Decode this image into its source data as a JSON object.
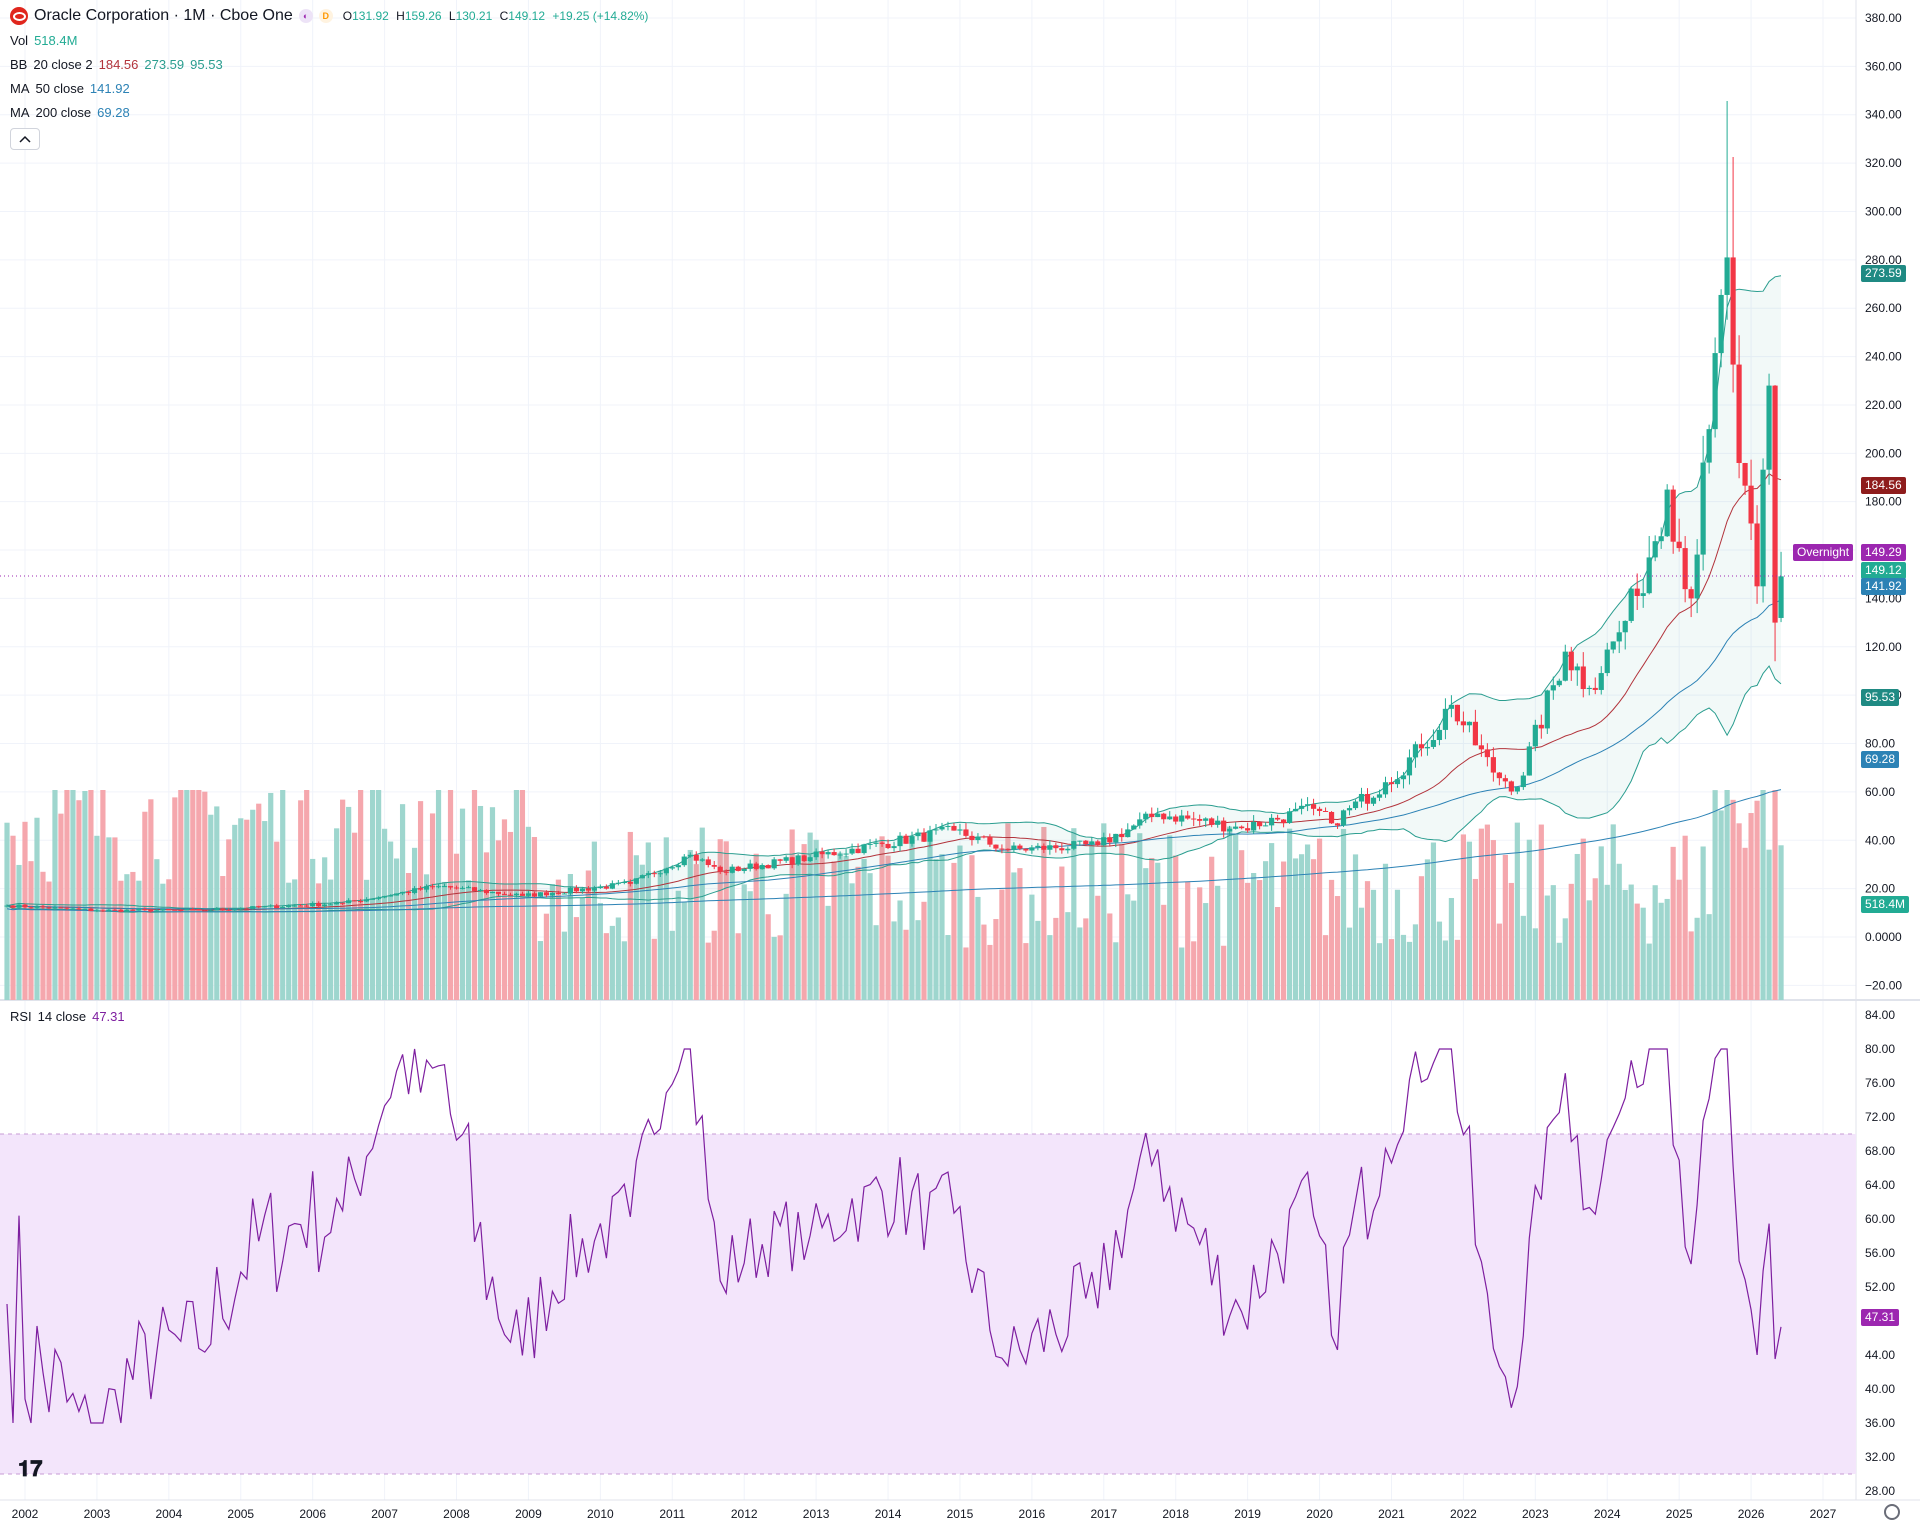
{
  "header": {
    "title": "Oracle Corporation · 1M · Cboe One",
    "logo_icon": "oracle-logo-icon",
    "badges": [
      {
        "icon": "moon-icon",
        "label": "◐",
        "color": "#9c27b0"
      },
      {
        "icon": "dividend-icon",
        "label": "D",
        "color": "#ff9800"
      }
    ],
    "ohlc": {
      "o_label": "O",
      "o": "131.92",
      "h_label": "H",
      "h": "159.26",
      "l_label": "L",
      "l": "130.21",
      "c_label": "C",
      "c": "149.12",
      "change": "+19.25 (+14.82%)"
    }
  },
  "indicators": {
    "vol": {
      "label": "Vol",
      "value": "518.4M"
    },
    "bb": {
      "label": "BB",
      "params": "20 close 2",
      "basis": "184.56",
      "upper": "273.59",
      "lower": "95.53"
    },
    "ma50": {
      "label": "MA",
      "params": "50 close",
      "value": "141.92"
    },
    "ma200": {
      "label": "MA",
      "params": "200 close",
      "value": "69.28"
    },
    "rsi": {
      "label": "RSI",
      "params": "14 close",
      "value": "47.31"
    }
  },
  "price_tags": {
    "bb_upper": "273.59",
    "bb_basis": "184.56",
    "overnight_label": "Overnight",
    "overnight": "149.29",
    "close": "149.12",
    "ma50": "141.92",
    "bb_lower": "95.53",
    "ma200": "69.28",
    "volume": "518.4M",
    "rsi": "47.31"
  },
  "colors": {
    "up": "#22ab94",
    "down": "#f23645",
    "vol_up": "#9ed6ce",
    "vol_down": "#f5a7ad",
    "bb": "#2a9d8f",
    "bb_basis": "#b2333b",
    "ma50": "#2c82b5",
    "ma200": "#2c82b5",
    "rsi": "#7e1fa0",
    "rsi_band": "#f3e5fb",
    "overnight": "#9c27b0"
  },
  "price_axis": [
    "380.00",
    "360.00",
    "340.00",
    "320.00",
    "300.00",
    "280.00",
    "260.00",
    "240.00",
    "220.00",
    "200.00",
    "180.00",
    "160.00",
    "140.00",
    "120.00",
    "100.00",
    "80.00",
    "60.00",
    "40.00",
    "20.00",
    "0.0000",
    "−20.00"
  ],
  "rsi_axis": [
    "84.00",
    "80.00",
    "76.00",
    "72.00",
    "68.00",
    "64.00",
    "60.00",
    "56.00",
    "52.00",
    "48.00",
    "44.00",
    "40.00",
    "36.00",
    "32.00",
    "28.00"
  ],
  "time_axis": [
    "2002",
    "2003",
    "2004",
    "2005",
    "2006",
    "2007",
    "2008",
    "2009",
    "2010",
    "2011",
    "2012",
    "2013",
    "2014",
    "2015",
    "2016",
    "2017",
    "2018",
    "2019",
    "2020",
    "2021",
    "2022",
    "2023",
    "2024",
    "2025",
    "2026",
    "2027"
  ],
  "chart_data": {
    "type": "candlestick",
    "interval": "1M",
    "symbol": "Oracle Corporation",
    "exchange": "Cboe One",
    "x_range": [
      "2001-10",
      "2027-02"
    ],
    "ylim": [
      -20,
      380
    ],
    "rsi_ylim": [
      28,
      84
    ],
    "rsi_band": [
      30,
      70
    ],
    "anchors": [
      {
        "date": "2001-10",
        "close": 13
      },
      {
        "date": "2003-01",
        "close": 11
      },
      {
        "date": "2004-06",
        "close": 11
      },
      {
        "date": "2006-06",
        "close": 14
      },
      {
        "date": "2007-10",
        "close": 21
      },
      {
        "date": "2008-12",
        "close": 17
      },
      {
        "date": "2010-06",
        "close": 22
      },
      {
        "date": "2011-04",
        "close": 34
      },
      {
        "date": "2011-09",
        "close": 27
      },
      {
        "date": "2012-12",
        "close": 33
      },
      {
        "date": "2014-12",
        "close": 44
      },
      {
        "date": "2015-09",
        "close": 36
      },
      {
        "date": "2016-12",
        "close": 38
      },
      {
        "date": "2017-10",
        "close": 51
      },
      {
        "date": "2018-12",
        "close": 45
      },
      {
        "date": "2019-12",
        "close": 53
      },
      {
        "date": "2020-03",
        "close": 47
      },
      {
        "date": "2020-12",
        "close": 64
      },
      {
        "date": "2021-06",
        "close": 78
      },
      {
        "date": "2021-11",
        "close": 96
      },
      {
        "date": "2022-06",
        "close": 68
      },
      {
        "date": "2022-10",
        "close": 62
      },
      {
        "date": "2023-06",
        "close": 118
      },
      {
        "date": "2023-10",
        "close": 103
      },
      {
        "date": "2024-03",
        "close": 126
      },
      {
        "date": "2024-06",
        "close": 141
      },
      {
        "date": "2024-11",
        "close": 185
      },
      {
        "date": "2025-03",
        "close": 140
      },
      {
        "date": "2025-06",
        "close": 210
      },
      {
        "date": "2025-09",
        "close": 281
      },
      {
        "date": "2025-11",
        "close": 196
      },
      {
        "date": "2026-02",
        "close": 145
      },
      {
        "date": "2026-04",
        "close": 228
      },
      {
        "date": "2026-05",
        "close": 130
      },
      {
        "date": "2026-06",
        "close": 149.12
      }
    ],
    "last_bar": {
      "date": "2026-06",
      "open": 131.92,
      "high": 159.26,
      "low": 130.21,
      "close": 149.12,
      "volume": "518.4M"
    },
    "highlights": [
      {
        "date": "2025-09",
        "high": 345.7
      },
      {
        "date": "2025-10",
        "high": 322.5
      },
      {
        "date": "2026-05",
        "low": 114
      }
    ]
  }
}
